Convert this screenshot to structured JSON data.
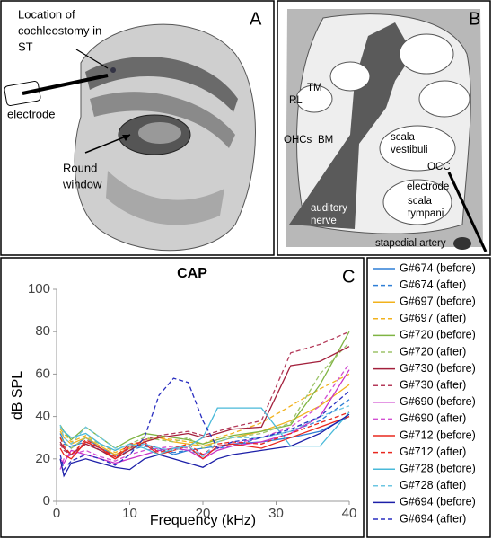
{
  "panel_a": {
    "label": "A",
    "labels": [
      [
        "Location of",
        "cochleostomy in",
        "ST"
      ],
      [
        "electrode"
      ],
      [
        "Round",
        "window"
      ]
    ]
  },
  "panel_b": {
    "label": "B",
    "labels": [
      [
        "TM"
      ],
      [
        "RL"
      ],
      [
        "OHCs"
      ],
      [
        "BM"
      ],
      [
        "scala",
        "vestibuli"
      ],
      [
        "OCC"
      ],
      [
        "electrode"
      ],
      [
        "scala",
        "tympani"
      ],
      [
        "auditory",
        "nerve"
      ],
      [
        "stapedial artery"
      ]
    ]
  },
  "chart_data": {
    "type": "line",
    "title": "CAP",
    "panel_label": "C",
    "x_label": "Frequency (kHz)",
    "y_label": "dB SPL",
    "xlim": [
      0,
      40
    ],
    "ylim": [
      0,
      100
    ],
    "xticks": [
      0,
      10,
      20,
      30,
      40
    ],
    "yticks": [
      0,
      20,
      40,
      60,
      80,
      100
    ],
    "grid": false,
    "x": [
      0.5,
      1,
      2,
      4,
      6,
      8,
      10,
      12,
      14,
      16,
      18,
      20,
      22,
      24,
      28,
      32,
      36,
      40
    ],
    "series": [
      {
        "name": "G#674 (before)",
        "color": "#2f7fd6",
        "dashed": false,
        "values": [
          32,
          28,
          25,
          30,
          25,
          22,
          25,
          27,
          25,
          22,
          24,
          25,
          26,
          27,
          28,
          30,
          33,
          40
        ]
      },
      {
        "name": "G#674 (after)",
        "color": "#2f7fd6",
        "dashed": true,
        "values": [
          30,
          27,
          26,
          28,
          24,
          21,
          24,
          26,
          24,
          23,
          24,
          22,
          25,
          26,
          30,
          33,
          38,
          48
        ]
      },
      {
        "name": "G#697 (before)",
        "color": "#f2b21c",
        "dashed": false,
        "values": [
          33,
          30,
          27,
          30,
          26,
          22,
          25,
          28,
          30,
          28,
          27,
          26,
          28,
          30,
          33,
          38,
          45,
          55
        ]
      },
      {
        "name": "G#697 (after)",
        "color": "#f2b21c",
        "dashed": true,
        "values": [
          34,
          32,
          28,
          31,
          27,
          23,
          26,
          29,
          30,
          29,
          28,
          27,
          30,
          32,
          37,
          45,
          53,
          60
        ]
      },
      {
        "name": "G#720 (before)",
        "color": "#7fb443",
        "dashed": false,
        "values": [
          36,
          33,
          29,
          35,
          30,
          25,
          29,
          32,
          31,
          30,
          29,
          27,
          29,
          31,
          33,
          36,
          55,
          80
        ]
      },
      {
        "name": "G#720 (after)",
        "color": "#9dc46a",
        "dashed": true,
        "values": [
          30,
          28,
          25,
          30,
          27,
          24,
          27,
          30,
          29,
          28,
          30,
          25,
          28,
          30,
          32,
          37,
          60,
          75
        ]
      },
      {
        "name": "G#730 (before)",
        "color": "#a3203c",
        "dashed": false,
        "values": [
          28,
          25,
          22,
          27,
          24,
          20,
          24,
          28,
          30,
          31,
          32,
          30,
          32,
          34,
          35,
          64,
          66,
          73
        ]
      },
      {
        "name": "G#730 (after)",
        "color": "#b43a5a",
        "dashed": true,
        "values": [
          27,
          24,
          22,
          28,
          25,
          21,
          25,
          29,
          31,
          32,
          33,
          31,
          33,
          35,
          38,
          70,
          74,
          80
        ]
      },
      {
        "name": "G#690 (before)",
        "color": "#c832c8",
        "dashed": false,
        "values": [
          20,
          18,
          24,
          22,
          20,
          18,
          20,
          22,
          24,
          25,
          24,
          20,
          24,
          26,
          28,
          32,
          40,
          62
        ]
      },
      {
        "name": "G#690 (after)",
        "color": "#d24fd2",
        "dashed": true,
        "values": [
          15,
          20,
          22,
          24,
          21,
          19,
          22,
          24,
          25,
          26,
          25,
          22,
          25,
          27,
          30,
          35,
          45,
          65
        ]
      },
      {
        "name": "G#712 (before)",
        "color": "#e8281f",
        "dashed": false,
        "values": [
          25,
          22,
          20,
          28,
          25,
          20,
          26,
          27,
          22,
          24,
          26,
          20,
          26,
          27,
          25,
          30,
          35,
          40
        ]
      },
      {
        "name": "G#712 (after)",
        "color": "#e8281f",
        "dashed": true,
        "values": [
          30,
          26,
          22,
          29,
          25,
          21,
          27,
          28,
          23,
          25,
          27,
          22,
          27,
          28,
          27,
          32,
          37,
          42
        ]
      },
      {
        "name": "G#728 (before)",
        "color": "#49b9d9",
        "dashed": false,
        "values": [
          35,
          33,
          30,
          32,
          27,
          24,
          27,
          25,
          22,
          25,
          26,
          30,
          44,
          44,
          44,
          26,
          26,
          42
        ]
      },
      {
        "name": "G#728 (after)",
        "color": "#6cc6e2",
        "dashed": true,
        "values": [
          36,
          30,
          27,
          35,
          30,
          25,
          26,
          27,
          25,
          24,
          26,
          21,
          28,
          30,
          30,
          33,
          40,
          45
        ]
      },
      {
        "name": "G#694 (before)",
        "color": "#1c1fa8",
        "dashed": false,
        "values": [
          20,
          12,
          18,
          20,
          18,
          16,
          15,
          20,
          22,
          20,
          18,
          16,
          20,
          22,
          24,
          26,
          32,
          41
        ]
      },
      {
        "name": "G#694 (after)",
        "color": "#2a2fc0",
        "dashed": true,
        "values": [
          22,
          15,
          19,
          22,
          20,
          17,
          22,
          30,
          50,
          58,
          56,
          38,
          25,
          28,
          30,
          34,
          40,
          52
        ]
      }
    ]
  }
}
